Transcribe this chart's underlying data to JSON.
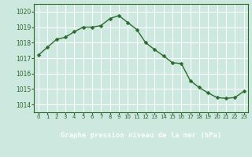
{
  "x": [
    0,
    1,
    2,
    3,
    4,
    5,
    6,
    7,
    8,
    9,
    10,
    11,
    12,
    13,
    14,
    15,
    16,
    17,
    18,
    19,
    20,
    21,
    22,
    23
  ],
  "y": [
    1017.2,
    1017.7,
    1018.2,
    1018.35,
    1018.7,
    1019.0,
    1019.0,
    1019.1,
    1019.55,
    1019.75,
    1019.3,
    1018.85,
    1018.0,
    1017.55,
    1017.15,
    1016.7,
    1016.65,
    1015.55,
    1015.1,
    1014.75,
    1014.45,
    1014.4,
    1014.45,
    1014.85
  ],
  "line_color": "#2d6a2d",
  "marker": "D",
  "marker_size": 2.5,
  "bg_color": "#cce8df",
  "grid_color": "#ffffff",
  "tick_color": "#2d6a2d",
  "xlabel": "Graphe pression niveau de la mer (hPa)",
  "xlabel_color": "#2d6a2d",
  "ylim": [
    1013.5,
    1020.5
  ],
  "xlim": [
    -0.5,
    23.5
  ],
  "yticks": [
    1014,
    1015,
    1016,
    1017,
    1018,
    1019,
    1020
  ],
  "xticks": [
    0,
    1,
    2,
    3,
    4,
    5,
    6,
    7,
    8,
    9,
    10,
    11,
    12,
    13,
    14,
    15,
    16,
    17,
    18,
    19,
    20,
    21,
    22,
    23
  ],
  "xtick_labels": [
    "0",
    "1",
    "2",
    "3",
    "4",
    "5",
    "6",
    "7",
    "8",
    "9",
    "10",
    "11",
    "12",
    "13",
    "14",
    "15",
    "16",
    "17",
    "18",
    "19",
    "20",
    "21",
    "22",
    "23"
  ],
  "linewidth": 1.0,
  "border_color": "#2d6a2d",
  "bottom_bar_color": "#2d6a2d",
  "bottom_bar_height": 0.18
}
